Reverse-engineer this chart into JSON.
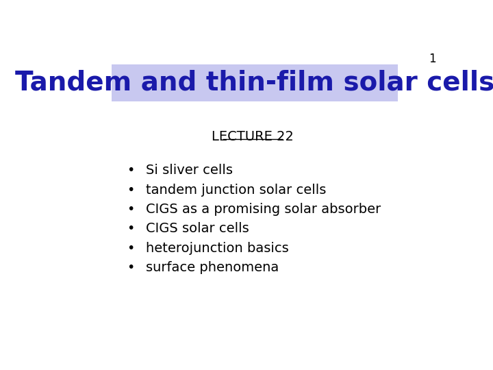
{
  "title": "Tandem and thin-film solar cells",
  "title_color": "#1a1aaa",
  "title_bg_color": "#c8c8f0",
  "lecture_label": "LECTURE 22",
  "slide_number": "1",
  "bullet_points": [
    "Si sliver cells",
    "tandem junction solar cells",
    "CIGS as a promising solar absorber",
    "CIGS solar cells",
    "heterojunction basics",
    "surface phenomena"
  ],
  "bg_color": "#ffffff",
  "text_color": "#000000",
  "bullet_color": "#000000",
  "title_fontsize": 28,
  "lecture_fontsize": 14,
  "bullet_fontsize": 14,
  "slide_number_fontsize": 12
}
